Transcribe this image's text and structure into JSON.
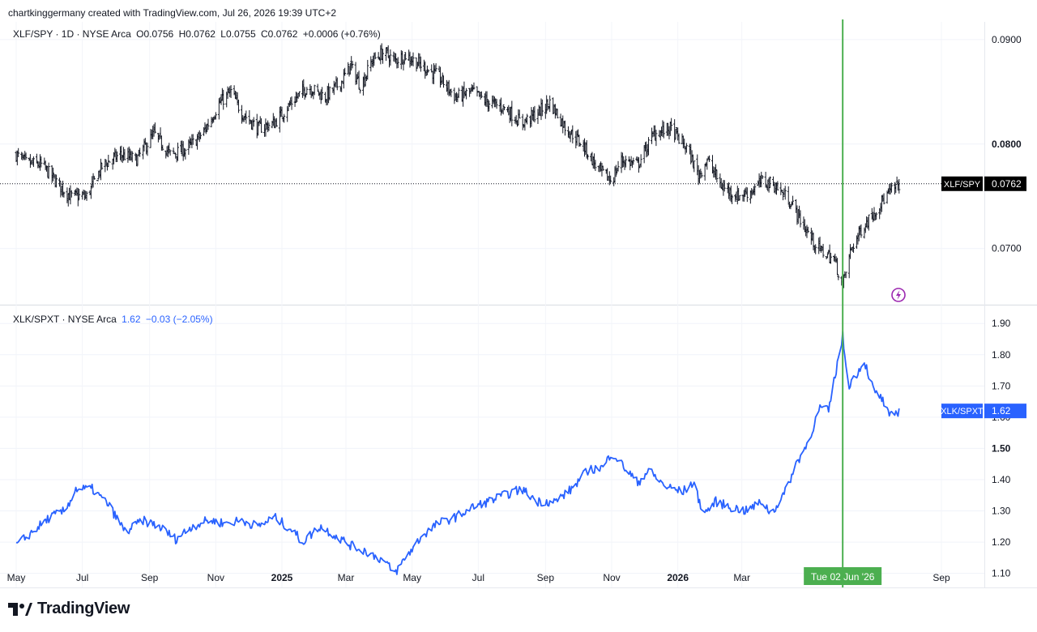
{
  "header": {
    "credit": "chartkinggermany created with TradingView.com, Jul 26, 2026 19:39 UTC+2"
  },
  "footer": {
    "brand": "TradingView"
  },
  "colors": {
    "upper_bars": "#000000",
    "lower_line": "#2962ff",
    "crosshair": "#4caf50",
    "accent_flash": "#9c27b0"
  },
  "icons": {
    "flash": "lightning-bolt-icon",
    "logo": "tradingview-logo-icon"
  },
  "chart_data": [
    {
      "type": "ohlc",
      "legend": {
        "symbol": "XLF/SPY · 1D · NYSE Arca",
        "open": "O0.0756",
        "high": "H0.0762",
        "low": "L0.0755",
        "close": "C0.0762",
        "change": "+0.0006 (+0.76%)"
      },
      "ylim": [
        0.0647,
        0.0917
      ],
      "yticks": [
        "0.0900",
        "0.0800",
        "0.0700"
      ],
      "last_value": 0.0762,
      "price_tag": {
        "label": "XLF/SPY",
        "value": "0.0762"
      },
      "keyframes": [
        [
          "2024-05-01",
          0.079
        ],
        [
          "2024-05-10",
          0.0782
        ],
        [
          "2024-05-25",
          0.078
        ],
        [
          "2024-06-10",
          0.076
        ],
        [
          "2024-06-20",
          0.075
        ],
        [
          "2024-07-05",
          0.075
        ],
        [
          "2024-07-20",
          0.078
        ],
        [
          "2024-08-05",
          0.079
        ],
        [
          "2024-08-20",
          0.0785
        ],
        [
          "2024-09-05",
          0.081
        ],
        [
          "2024-09-20",
          0.079
        ],
        [
          "2024-10-05",
          0.0795
        ],
        [
          "2024-10-20",
          0.081
        ],
        [
          "2024-11-05",
          0.084
        ],
        [
          "2024-11-15",
          0.085
        ],
        [
          "2024-11-25",
          0.083
        ],
        [
          "2024-12-10",
          0.0815
        ],
        [
          "2024-12-25",
          0.082
        ],
        [
          "2025-01-10",
          0.084
        ],
        [
          "2025-01-25",
          0.0855
        ],
        [
          "2025-02-10",
          0.0845
        ],
        [
          "2025-02-25",
          0.086
        ],
        [
          "2025-03-05",
          0.0875
        ],
        [
          "2025-03-15",
          0.0855
        ],
        [
          "2025-03-25",
          0.088
        ],
        [
          "2025-04-05",
          0.0888
        ],
        [
          "2025-04-15",
          0.088
        ],
        [
          "2025-04-25",
          0.0885
        ],
        [
          "2025-05-10",
          0.0875
        ],
        [
          "2025-05-25",
          0.0865
        ],
        [
          "2025-06-10",
          0.0845
        ],
        [
          "2025-06-25",
          0.085
        ],
        [
          "2025-07-10",
          0.084
        ],
        [
          "2025-07-25",
          0.0835
        ],
        [
          "2025-08-10",
          0.082
        ],
        [
          "2025-08-25",
          0.083
        ],
        [
          "2025-09-05",
          0.084
        ],
        [
          "2025-09-20",
          0.0815
        ],
        [
          "2025-10-05",
          0.08
        ],
        [
          "2025-10-20",
          0.0775
        ],
        [
          "2025-11-01",
          0.0765
        ],
        [
          "2025-11-10",
          0.0785
        ],
        [
          "2025-11-25",
          0.078
        ],
        [
          "2025-12-10",
          0.081
        ],
        [
          "2025-12-25",
          0.0815
        ],
        [
          "2026-01-10",
          0.0795
        ],
        [
          "2026-01-20",
          0.077
        ],
        [
          "2026-01-28",
          0.0785
        ],
        [
          "2026-02-10",
          0.076
        ],
        [
          "2026-02-25",
          0.075
        ],
        [
          "2026-03-10",
          0.0755
        ],
        [
          "2026-03-20",
          0.0765
        ],
        [
          "2026-04-01",
          0.076
        ],
        [
          "2026-04-15",
          0.0745
        ],
        [
          "2026-04-28",
          0.072
        ],
        [
          "2026-05-10",
          0.07
        ],
        [
          "2026-05-25",
          0.069
        ],
        [
          "2026-06-02",
          0.0665
        ],
        [
          "2026-06-10",
          0.07
        ],
        [
          "2026-06-20",
          0.072
        ],
        [
          "2026-07-01",
          0.0735
        ],
        [
          "2026-07-12",
          0.075
        ],
        [
          "2026-07-24",
          0.0762
        ]
      ]
    },
    {
      "type": "line",
      "legend": {
        "symbol": "XLK/SPXT · NYSE Arca",
        "value": "1.62",
        "change": "−0.03 (−2.05%)"
      },
      "ylim": [
        1.055,
        1.955
      ],
      "yticks": [
        "1.90",
        "1.80",
        "1.70",
        "1.60",
        "1.50",
        "1.40",
        "1.30",
        "1.20",
        "1.10"
      ],
      "last_value": 1.62,
      "price_tag": {
        "label": "XLK/SPXT",
        "value": "1.62"
      },
      "keyframes": [
        [
          "2024-05-01",
          1.19
        ],
        [
          "2024-05-15",
          1.23
        ],
        [
          "2024-06-01",
          1.28
        ],
        [
          "2024-06-15",
          1.3
        ],
        [
          "2024-06-25",
          1.37
        ],
        [
          "2024-07-10",
          1.37
        ],
        [
          "2024-07-25",
          1.32
        ],
        [
          "2024-08-10",
          1.23
        ],
        [
          "2024-08-25",
          1.27
        ],
        [
          "2024-09-10",
          1.25
        ],
        [
          "2024-09-25",
          1.21
        ],
        [
          "2024-10-10",
          1.25
        ],
        [
          "2024-10-25",
          1.27
        ],
        [
          "2024-11-10",
          1.26
        ],
        [
          "2024-11-25",
          1.27
        ],
        [
          "2024-12-10",
          1.25
        ],
        [
          "2024-12-25",
          1.28
        ],
        [
          "2025-01-10",
          1.24
        ],
        [
          "2025-01-20",
          1.2
        ],
        [
          "2025-02-05",
          1.25
        ],
        [
          "2025-02-20",
          1.22
        ],
        [
          "2025-03-05",
          1.19
        ],
        [
          "2025-03-20",
          1.17
        ],
        [
          "2025-04-05",
          1.14
        ],
        [
          "2025-04-15",
          1.1
        ],
        [
          "2025-04-25",
          1.15
        ],
        [
          "2025-05-10",
          1.22
        ],
        [
          "2025-05-25",
          1.26
        ],
        [
          "2025-06-10",
          1.28
        ],
        [
          "2025-06-25",
          1.31
        ],
        [
          "2025-07-10",
          1.33
        ],
        [
          "2025-07-25",
          1.35
        ],
        [
          "2025-08-10",
          1.37
        ],
        [
          "2025-08-25",
          1.33
        ],
        [
          "2025-09-10",
          1.33
        ],
        [
          "2025-09-25",
          1.37
        ],
        [
          "2025-10-10",
          1.43
        ],
        [
          "2025-10-25",
          1.44
        ],
        [
          "2025-11-01",
          1.49
        ],
        [
          "2025-11-10",
          1.45
        ],
        [
          "2025-11-25",
          1.39
        ],
        [
          "2025-12-05",
          1.43
        ],
        [
          "2025-12-20",
          1.38
        ],
        [
          "2026-01-05",
          1.36
        ],
        [
          "2026-01-15",
          1.39
        ],
        [
          "2026-01-25",
          1.29
        ],
        [
          "2026-02-05",
          1.33
        ],
        [
          "2026-02-20",
          1.31
        ],
        [
          "2026-03-05",
          1.3
        ],
        [
          "2026-03-20",
          1.33
        ],
        [
          "2026-03-28",
          1.29
        ],
        [
          "2026-04-10",
          1.36
        ],
        [
          "2026-04-20",
          1.45
        ],
        [
          "2026-05-01",
          1.52
        ],
        [
          "2026-05-12",
          1.63
        ],
        [
          "2026-05-20",
          1.62
        ],
        [
          "2026-05-28",
          1.77
        ],
        [
          "2026-06-02",
          1.86
        ],
        [
          "2026-06-07",
          1.7
        ],
        [
          "2026-06-15",
          1.74
        ],
        [
          "2026-06-22",
          1.78
        ],
        [
          "2026-07-01",
          1.68
        ],
        [
          "2026-07-08",
          1.66
        ],
        [
          "2026-07-15",
          1.6
        ],
        [
          "2026-07-24",
          1.62
        ]
      ]
    }
  ],
  "x_axis": {
    "labels": [
      {
        "text": "May",
        "date": "2024-05-01",
        "bold": false
      },
      {
        "text": "Jul",
        "date": "2024-07-01",
        "bold": false
      },
      {
        "text": "Sep",
        "date": "2024-09-01",
        "bold": false
      },
      {
        "text": "Nov",
        "date": "2024-11-01",
        "bold": false
      },
      {
        "text": "2025",
        "date": "2025-01-01",
        "bold": true
      },
      {
        "text": "Mar",
        "date": "2025-03-01",
        "bold": false
      },
      {
        "text": "May",
        "date": "2025-05-01",
        "bold": false
      },
      {
        "text": "Jul",
        "date": "2025-07-01",
        "bold": false
      },
      {
        "text": "Sep",
        "date": "2025-09-01",
        "bold": false
      },
      {
        "text": "Nov",
        "date": "2025-11-01",
        "bold": false
      },
      {
        "text": "2026",
        "date": "2026-01-01",
        "bold": true
      },
      {
        "text": "Mar",
        "date": "2026-03-01",
        "bold": false
      },
      {
        "text": "Sep",
        "date": "2026-09-01",
        "bold": false
      }
    ],
    "crosshair": {
      "date": "2026-06-02",
      "label": "Tue 02 Jun '26"
    }
  }
}
